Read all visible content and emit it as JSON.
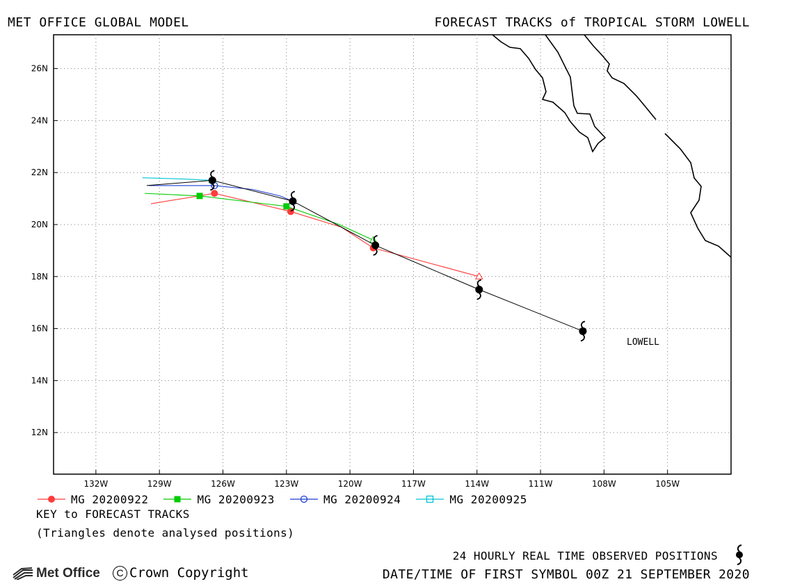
{
  "header": {
    "left": "MET OFFICE GLOBAL MODEL",
    "right": "FORECAST TRACKS of TROPICAL STORM LOWELL"
  },
  "map": {
    "lon_range": [
      -134.0,
      -102.0
    ],
    "lat_range": [
      10.4,
      27.3
    ],
    "x_ticks": [
      {
        "lon": -132,
        "label": "132W"
      },
      {
        "lon": -129,
        "label": "129W"
      },
      {
        "lon": -126,
        "label": "126W"
      },
      {
        "lon": -123,
        "label": "123W"
      },
      {
        "lon": -120,
        "label": "120W"
      },
      {
        "lon": -117,
        "label": "117W"
      },
      {
        "lon": -114,
        "label": "114W"
      },
      {
        "lon": -111,
        "label": "111W"
      },
      {
        "lon": -108,
        "label": "108W"
      },
      {
        "lon": -105,
        "label": "105W"
      }
    ],
    "y_ticks": [
      {
        "lat": 12,
        "label": "12N"
      },
      {
        "lat": 14,
        "label": "14N"
      },
      {
        "lat": 16,
        "label": "16N"
      },
      {
        "lat": 18,
        "label": "18N"
      },
      {
        "lat": 20,
        "label": "20N"
      },
      {
        "lat": 22,
        "label": "22N"
      },
      {
        "lat": 24,
        "label": "24N"
      },
      {
        "lat": 26,
        "label": "26N"
      }
    ],
    "grid": "dotted",
    "storm_label": "LOWELL",
    "observed_track": {
      "name": "Observed",
      "color": "#000000",
      "points": [
        [
          -109.0,
          15.9
        ],
        [
          -113.9,
          17.5
        ],
        [
          -118.8,
          19.2
        ],
        [
          -122.7,
          20.9
        ],
        [
          -126.5,
          21.7
        ],
        [
          -129.6,
          21.5
        ]
      ],
      "symbol_points": [
        [
          -109.0,
          15.9
        ],
        [
          -113.9,
          17.5
        ],
        [
          -118.8,
          19.2
        ],
        [
          -122.7,
          20.9
        ],
        [
          -126.5,
          21.7
        ]
      ]
    },
    "forecast_tracks": [
      {
        "name": "MG 20200922",
        "color": "#ff3b3b",
        "marker": "circle-filled",
        "analysed": [
          -113.9,
          18.0
        ],
        "points": [
          [
            -113.9,
            18.0
          ],
          [
            -118.9,
            19.1
          ],
          [
            -120.4,
            19.9
          ],
          [
            -122.8,
            20.5
          ],
          [
            -126.4,
            21.2
          ],
          [
            -129.4,
            20.8
          ]
        ],
        "markers": [
          [
            -118.9,
            19.1
          ],
          [
            -122.8,
            20.5
          ],
          [
            -126.4,
            21.2
          ]
        ]
      },
      {
        "name": "MG 20200923",
        "color": "#00cc00",
        "marker": "square-filled",
        "analysed": [
          -118.9,
          19.4
        ],
        "points": [
          [
            -118.9,
            19.4
          ],
          [
            -120.5,
            20.0
          ],
          [
            -123.0,
            20.7
          ],
          [
            -127.1,
            21.1
          ],
          [
            -129.7,
            21.2
          ]
        ],
        "markers": [
          [
            -123.0,
            20.7
          ],
          [
            -127.1,
            21.1
          ]
        ]
      },
      {
        "name": "MG 20200924",
        "color": "#1f3fd0",
        "marker": "circle-open",
        "analysed": [
          -122.7,
          20.9
        ],
        "points": [
          [
            -122.7,
            20.9
          ],
          [
            -123.3,
            21.1
          ],
          [
            -124.6,
            21.35
          ],
          [
            -126.4,
            21.5
          ],
          [
            -129.5,
            21.5
          ]
        ],
        "markers": [
          [
            -126.4,
            21.5
          ]
        ]
      },
      {
        "name": "MG 20200925",
        "color": "#00c4d4",
        "marker": "square-open",
        "analysed": [
          -126.5,
          21.7
        ],
        "points": [
          [
            -126.5,
            21.7
          ],
          [
            -127.8,
            21.75
          ],
          [
            -129.8,
            21.8
          ]
        ],
        "markers": []
      }
    ]
  },
  "legend": [
    {
      "label": "MG 20200922",
      "color": "#ff3b3b",
      "marker": "circle-filled"
    },
    {
      "label": "MG 20200923",
      "color": "#00cc00",
      "marker": "square-filled"
    },
    {
      "label": "MG 20200924",
      "color": "#1f3fd0",
      "marker": "circle-open"
    },
    {
      "label": "MG 20200925",
      "color": "#00c4d4",
      "marker": "square-open"
    }
  ],
  "footer": {
    "key_title": "KEY to FORECAST TRACKS",
    "key_note": "(Triangles denote analysed positions)",
    "observed_text": "24 HOURLY REAL TIME OBSERVED POSITIONS",
    "datetime_text": "DATE/TIME OF FIRST SYMBOL 00Z 21 SEPTEMBER 2020",
    "logo_text": "Met Office",
    "copyright_symbol": "C",
    "copyright_text": "Crown Copyright"
  }
}
